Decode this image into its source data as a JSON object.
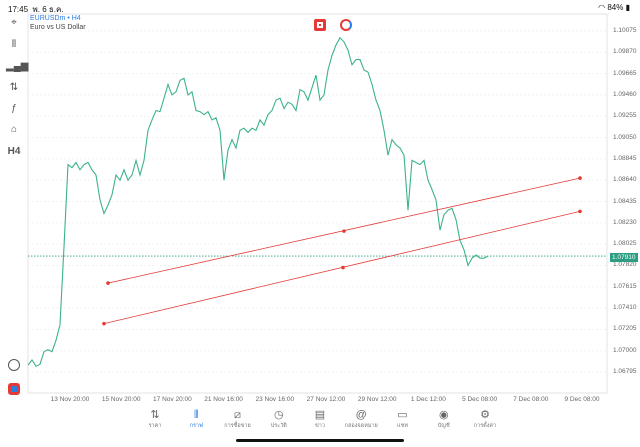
{
  "status": {
    "time": "17:45",
    "date": "พ. 6 ธ.ค.",
    "battery": "84%"
  },
  "header": {
    "symbol": "EURUSDm • H4",
    "description": "Euro vs US Dollar"
  },
  "left_toolbar": [
    {
      "icon": "crosshair-icon",
      "glyph": "⌖"
    },
    {
      "icon": "candles-icon",
      "glyph": "⫴"
    },
    {
      "icon": "indicators-icon",
      "glyph": "▂▄▆"
    },
    {
      "icon": "sliders-icon",
      "glyph": "⇅"
    },
    {
      "icon": "function-icon",
      "glyph": "ƒ"
    },
    {
      "icon": "shapes-icon",
      "glyph": "⌂"
    },
    {
      "icon": "timeframe",
      "glyph": "H4"
    }
  ],
  "colors": {
    "line": "#3cb38a",
    "trend": "#e53935",
    "accent": "#2a7de1",
    "current": "#2a9d82"
  },
  "chart_data": {
    "type": "line",
    "ylim": [
      1.0669,
      1.1018
    ],
    "y_ticks": [
      "1.10075",
      "1.09870",
      "1.09665",
      "1.09460",
      "1.09255",
      "1.09050",
      "1.08845",
      "1.08640",
      "1.08435",
      "1.08230",
      "1.08025",
      "1.07820",
      "1.07615",
      "1.07410",
      "1.07205",
      "1.07000",
      "1.06795"
    ],
    "x_ticks": [
      "13 Nov 20:00",
      "15 Nov 20:00",
      "17 Nov 20:00",
      "21 Nov 16:00",
      "23 Nov 16:00",
      "27 Nov 12:00",
      "29 Nov 12:00",
      "1 Dec 12:00",
      "5 Dec 08:00",
      "7 Dec 08:00",
      "9 Dec 08:00"
    ],
    "current_price": "1.07910",
    "values": [
      1.0686,
      1.0691,
      1.0685,
      1.0687,
      1.0699,
      1.0701,
      1.0699,
      1.071,
      1.0725,
      1.08,
      1.0879,
      1.0876,
      1.0881,
      1.0874,
      1.0879,
      1.0881,
      1.0874,
      1.0869,
      1.0845,
      1.0832,
      1.084,
      1.085,
      1.0869,
      1.0864,
      1.0874,
      1.0864,
      1.0869,
      1.0883,
      1.0869,
      1.0883,
      1.0912,
      1.0922,
      1.0931,
      1.093,
      1.0943,
      1.0956,
      1.0946,
      1.0949,
      1.096,
      1.0962,
      1.0946,
      1.0949,
      1.0931,
      1.093,
      1.0927,
      1.093,
      1.0922,
      1.0924,
      1.0912,
      1.0864,
      1.0893,
      1.0903,
      1.0895,
      1.0912,
      1.0914,
      1.091,
      1.0914,
      1.0912,
      1.0922,
      1.0917,
      1.0927,
      1.0931,
      1.0941,
      1.0943,
      1.0933,
      1.0939,
      1.0937,
      1.0931,
      1.0951,
      1.0949,
      1.0941,
      1.0953,
      1.0965,
      1.0941,
      1.0946,
      1.097,
      1.0984,
      1.0994,
      1.1001,
      1.0997,
      1.0989,
      1.0975,
      1.098,
      1.098,
      1.097,
      1.0968,
      1.0956,
      1.0941,
      1.0931,
      1.0912,
      1.0888,
      1.0903,
      1.0898,
      1.0895,
      1.0888,
      1.0835,
      1.0883,
      1.0881,
      1.0879,
      1.0883,
      1.0864,
      1.0855,
      1.0845,
      1.0816,
      1.0831,
      1.0835,
      1.0837,
      1.0826,
      1.0806,
      1.0797,
      1.0782,
      1.0789,
      1.0792,
      1.0789,
      1.0789,
      1.0791
    ],
    "trendlines": [
      {
        "start": 1.0765,
        "mid": 1.0815,
        "end": 1.0866
      },
      {
        "start": 1.0726,
        "mid": 1.078,
        "end": 1.0834
      }
    ]
  },
  "nav": [
    {
      "icon": "price-icon",
      "glyph": "⇅",
      "label": "ราคา"
    },
    {
      "icon": "chart-icon",
      "glyph": "⫴",
      "label": "กราฟ",
      "active": true
    },
    {
      "icon": "trade-icon",
      "glyph": "⧄",
      "label": "การซื้อขาย"
    },
    {
      "icon": "history-icon",
      "glyph": "◷",
      "label": "ประวัติ"
    },
    {
      "icon": "news-icon",
      "glyph": "▤",
      "label": "ข่าว"
    },
    {
      "icon": "mailbox-icon",
      "glyph": "@",
      "label": "กล่องจดหมาย"
    },
    {
      "icon": "chat-icon",
      "glyph": "▭",
      "label": "แชท"
    },
    {
      "icon": "account-icon",
      "glyph": "◉",
      "label": "บัญชี"
    },
    {
      "icon": "settings-icon",
      "glyph": "⚙",
      "label": "การตั้งค่า"
    }
  ]
}
